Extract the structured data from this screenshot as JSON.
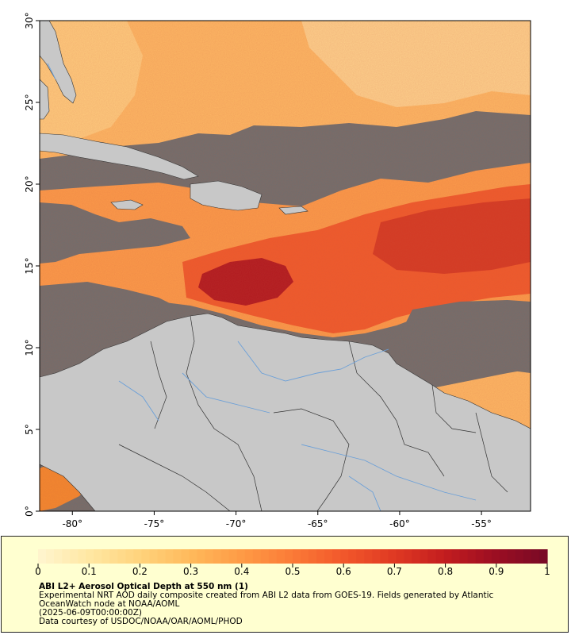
{
  "map": {
    "lat_labels": [
      "0°",
      "5°",
      "10°",
      "15°",
      "20°",
      "25°",
      "30°"
    ],
    "lon_labels": [
      "-80°",
      "-75°",
      "-70°",
      "-65°",
      "-60°",
      "-55°"
    ],
    "lat_values": [
      0,
      5,
      10,
      15,
      20,
      25,
      30
    ],
    "lon_values": [
      -80,
      -75,
      -70,
      -65,
      -60,
      -55
    ],
    "lat_range": [
      0,
      30
    ],
    "lon_range": [
      -82,
      -52
    ],
    "colors": {
      "land": "#c8c8c8",
      "no_data": "#6e6e6e",
      "border": "#333333",
      "rivers": "#6a9fd8"
    }
  },
  "colorbar": {
    "ticks": [
      "0",
      "0.1",
      "0.2",
      "0.3",
      "0.4",
      "0.5",
      "0.6",
      "0.7",
      "0.8",
      "0.9",
      "1"
    ],
    "range": [
      0,
      1
    ],
    "colors": [
      "#fff4cc",
      "#ffe6a0",
      "#ffd27a",
      "#ffb85a",
      "#fe9a45",
      "#fb7a37",
      "#f2582b",
      "#e03a23",
      "#c41e1f",
      "#9d0e22",
      "#7a0a25"
    ]
  },
  "caption": {
    "title": "ABI L2+ Aerosol Optical Depth at 550 nm (1)",
    "line1": "Experimental NRT AOD daily composite created from ABI L2 data from GOES-19. Fields generated by Atlantic",
    "line2": "OceanWatch node at NOAA/AOML",
    "line3": "(2025-06-09T00:00:00Z)",
    "line4": "Data courtesy of USDOC/NOAA/OAR/AOML/PHOD"
  }
}
